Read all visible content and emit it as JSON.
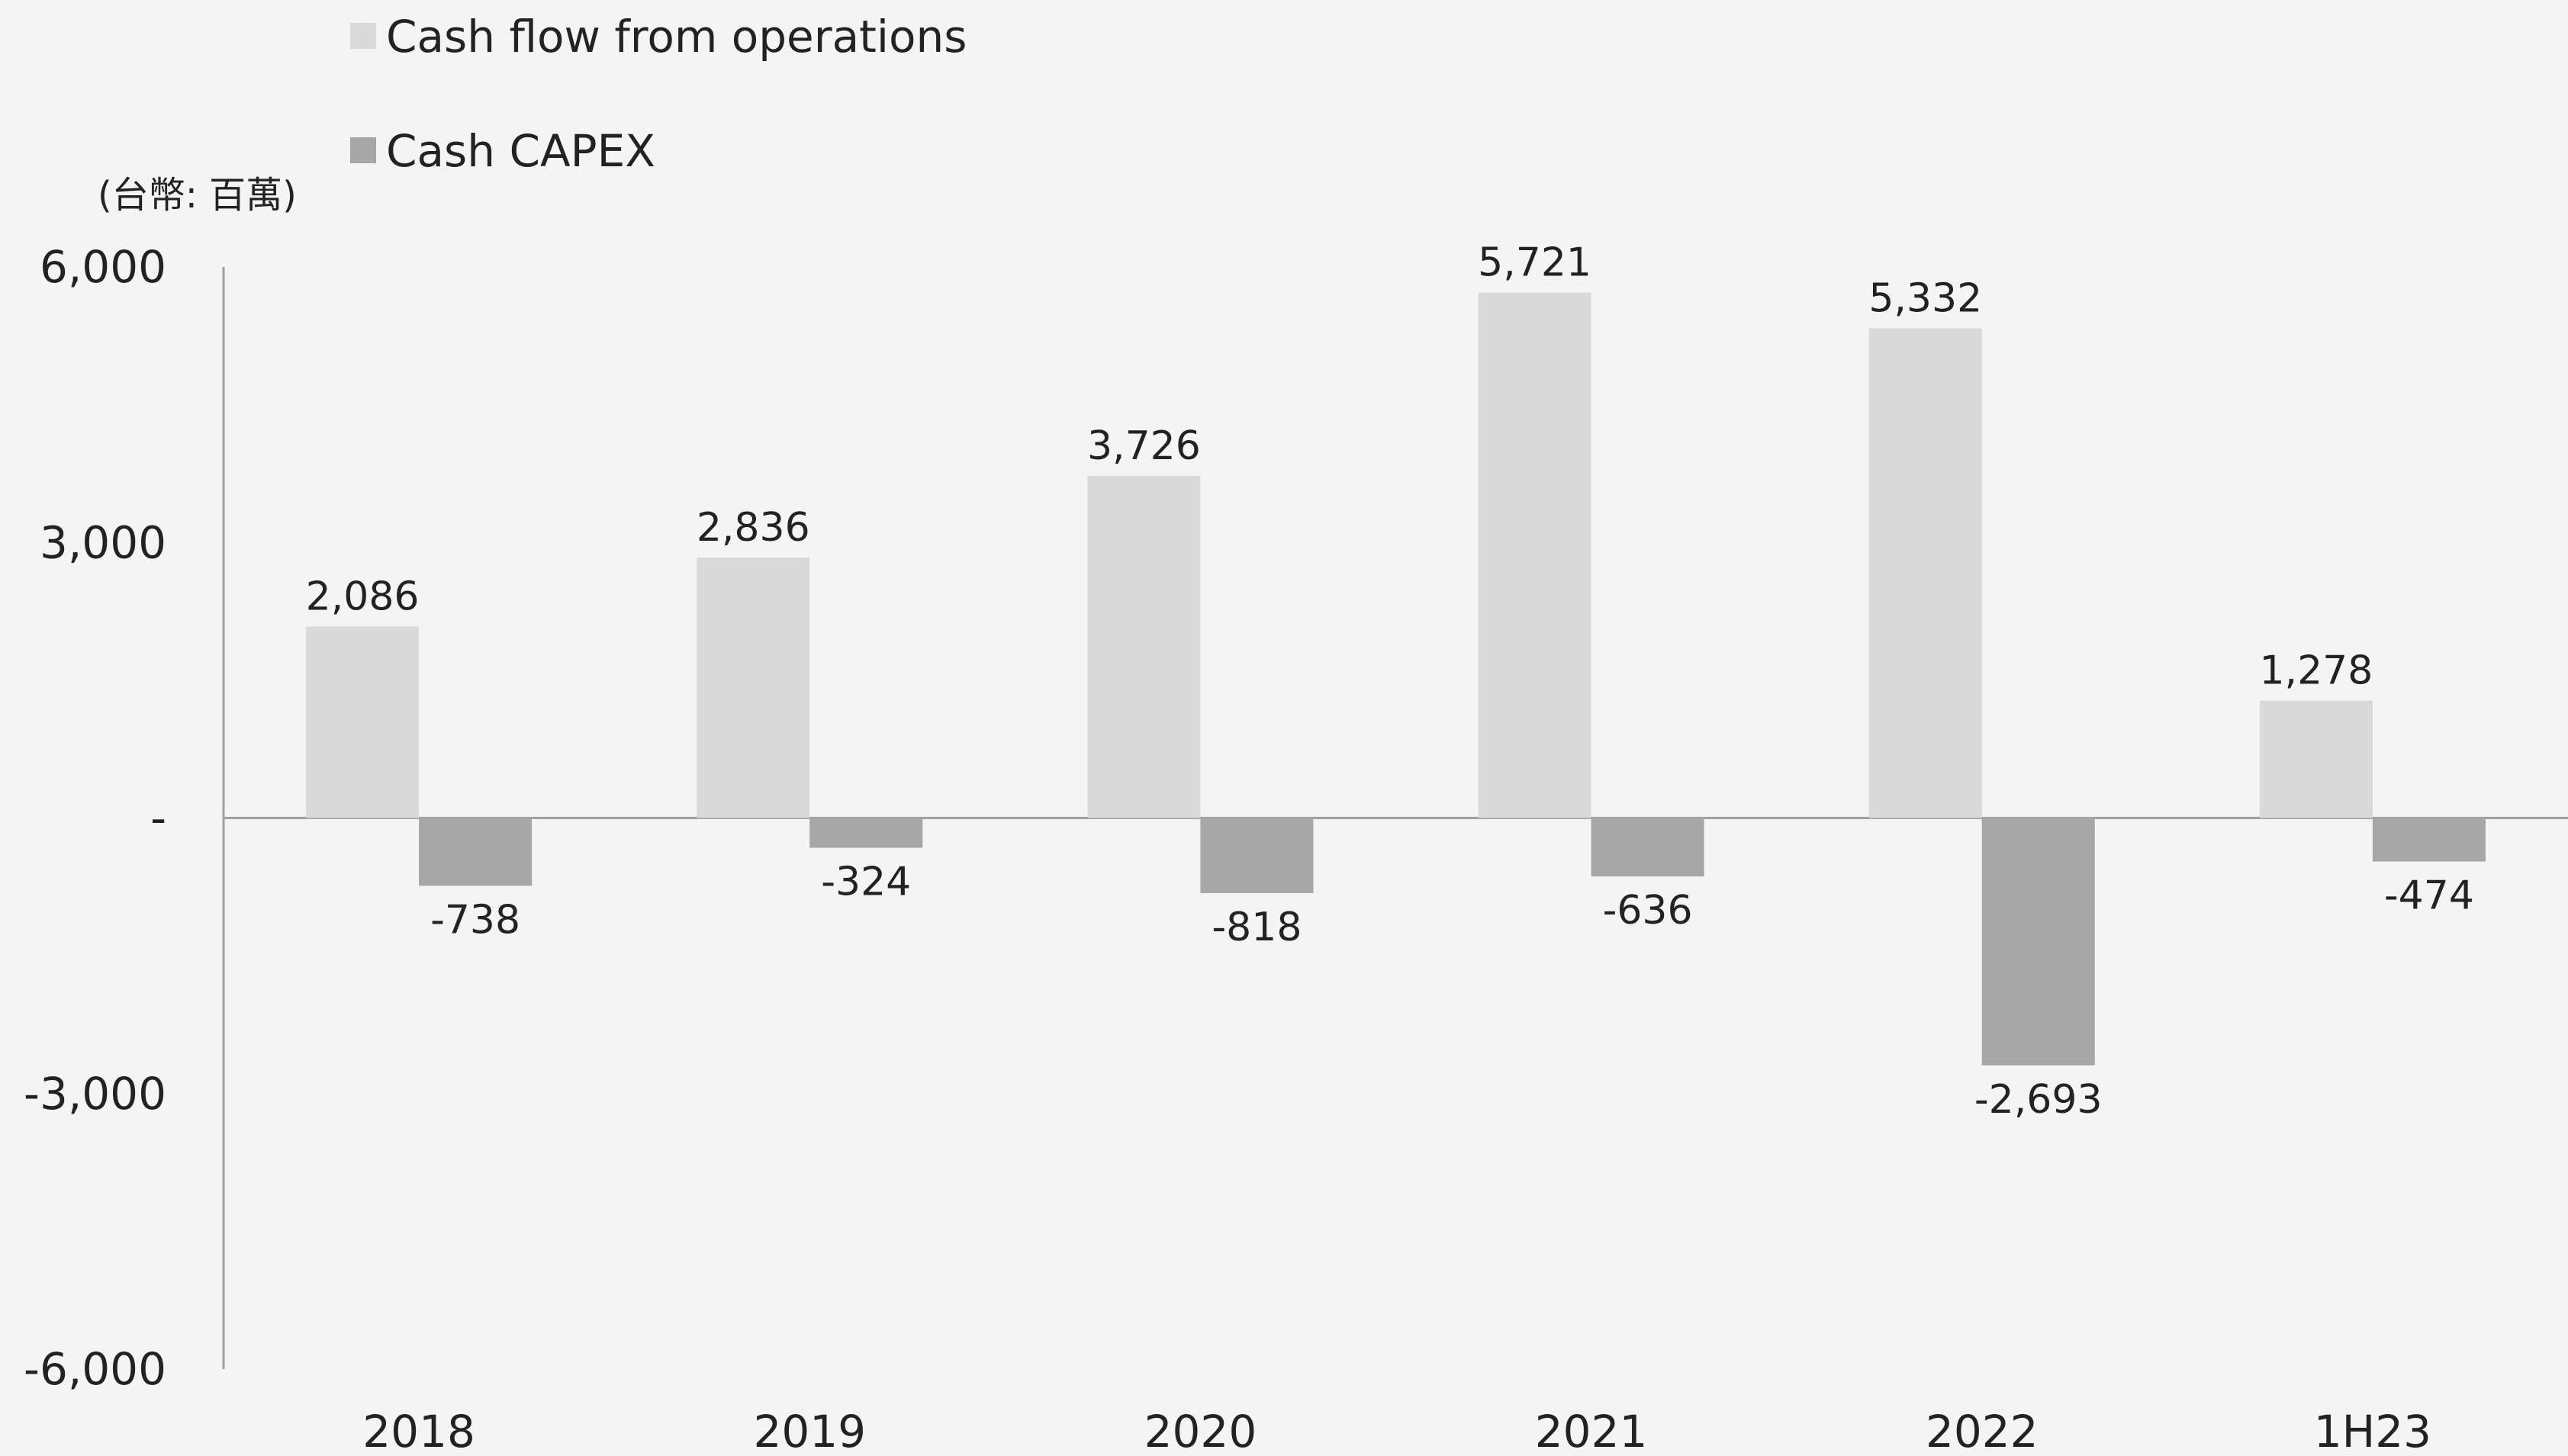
{
  "chart_data": {
    "type": "bar",
    "unit_label": "(台幣: 百萬)",
    "categories": [
      "2018",
      "2019",
      "2020",
      "2021",
      "2022",
      "1H23"
    ],
    "series": [
      {
        "name": "Cash flow from operations",
        "color": "#d9d9d9",
        "values": [
          2086,
          2836,
          3726,
          5721,
          5332,
          1278
        ],
        "labels": [
          "2,086",
          "2,836",
          "3,726",
          "5,721",
          "5,332",
          "1,278"
        ]
      },
      {
        "name": "Cash CAPEX",
        "color": "#a6a6a6",
        "values": [
          -738,
          -324,
          -818,
          -636,
          -2693,
          -474
        ],
        "labels": [
          "-738",
          "-324",
          "-818",
          "-636",
          "-2,693",
          "-474"
        ]
      }
    ],
    "ylim": [
      -6000,
      6000
    ],
    "yticks": [
      6000,
      3000,
      0,
      -3000,
      -6000
    ],
    "ytick_labels": [
      "6,000",
      "3,000",
      "-",
      "-3,000",
      "-6,000"
    ],
    "legend_position": "top-left",
    "grid": false
  }
}
